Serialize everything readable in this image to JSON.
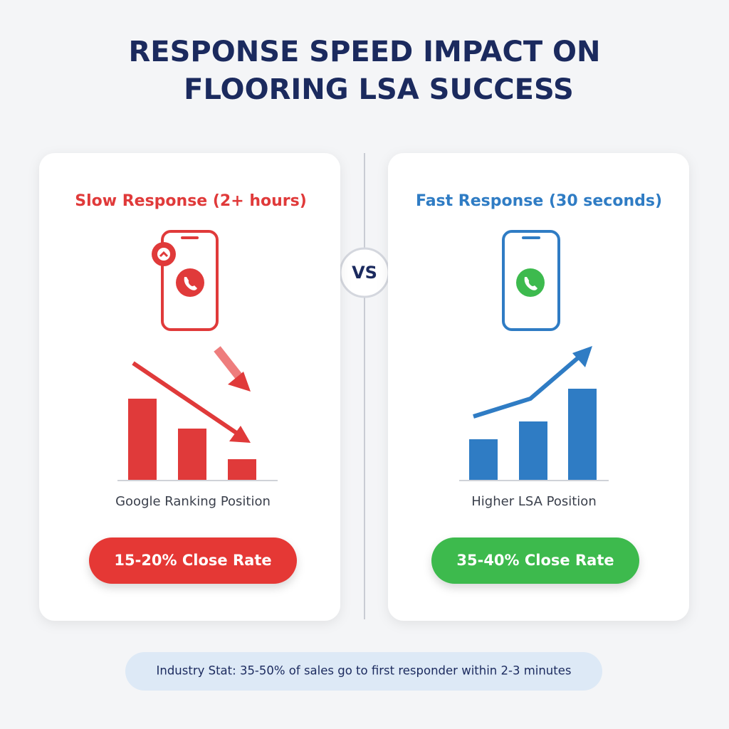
{
  "title": {
    "lines": [
      "RESPONSE SPEED IMPACT ON",
      "FLOORING LSA SUCCESS"
    ]
  },
  "left_panel": {
    "heading": "Slow Response (2+ hours)",
    "caption": "Google Ranking Position",
    "badge": "15-20% Close Rate"
  },
  "divider": {
    "label": "VS"
  },
  "right_panel": {
    "heading": "Fast Response (30 seconds)",
    "caption": "Higher LSA Position",
    "badge": "35-40% Close Rate"
  },
  "footer": {
    "stat": "Industry Stat: 35-50% of sales go to first responder within 2-3 minutes"
  }
}
